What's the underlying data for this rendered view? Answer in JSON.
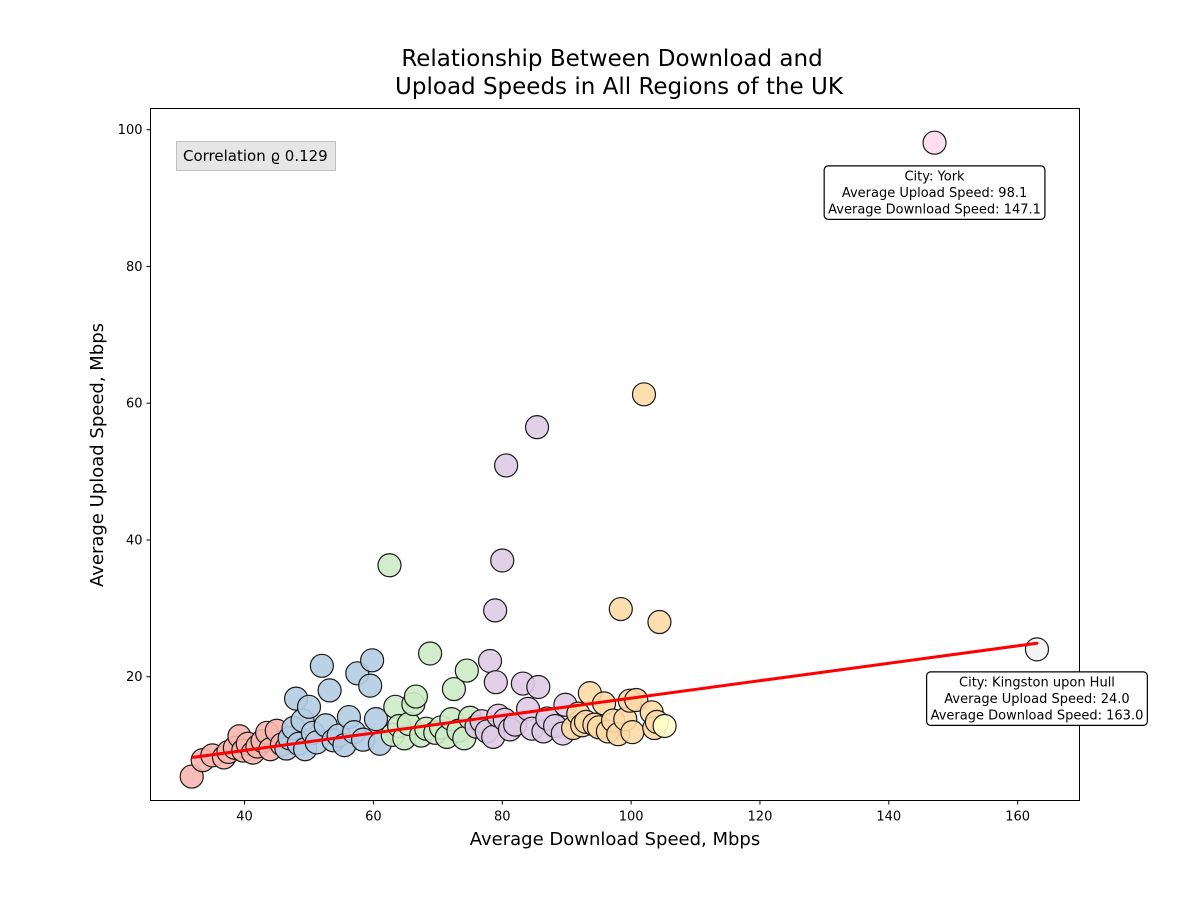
{
  "chart_data": {
    "type": "scatter",
    "title_lines": [
      "Relationship Between Download and",
      "Upload Speeds in All Regions of the UK"
    ],
    "xlabel": "Average Download Speed, Mbps",
    "ylabel": "Average Upload Speed, Mbps",
    "xlim": [
      25.4,
      169.6
    ],
    "ylim": [
      1.9,
      103.1
    ],
    "xticks": [
      40,
      60,
      80,
      100,
      120,
      140,
      160
    ],
    "yticks": [
      20,
      40,
      60,
      80,
      100
    ],
    "grid": false,
    "correlation_text": "Correlation ϱ 0.129",
    "trend_line": {
      "color": "#ff0000",
      "points": [
        [
          32.0,
          8.2
        ],
        [
          163.0,
          24.9
        ]
      ]
    },
    "colors": {
      "red": "#f7b6ae",
      "blue": "#b4cde3",
      "green": "#ccebc5",
      "purple": "#decbe4",
      "orange": "#fed9a6",
      "yellow": "#ffffcc",
      "pink": "#fddaec",
      "white": "#f2f2f2"
    },
    "points": [
      {
        "x": 31.8,
        "y": 5.4,
        "c": "red"
      },
      {
        "x": 33.5,
        "y": 7.8,
        "c": "red"
      },
      {
        "x": 35.0,
        "y": 8.5,
        "c": "red"
      },
      {
        "x": 36.8,
        "y": 8.2,
        "c": "red"
      },
      {
        "x": 37.5,
        "y": 9.0,
        "c": "red"
      },
      {
        "x": 38.5,
        "y": 9.6,
        "c": "red"
      },
      {
        "x": 39.2,
        "y": 11.3,
        "c": "red"
      },
      {
        "x": 39.8,
        "y": 9.2,
        "c": "red"
      },
      {
        "x": 40.5,
        "y": 10.2,
        "c": "red"
      },
      {
        "x": 41.3,
        "y": 8.9,
        "c": "red"
      },
      {
        "x": 42.0,
        "y": 9.8,
        "c": "red"
      },
      {
        "x": 42.8,
        "y": 10.6,
        "c": "red"
      },
      {
        "x": 43.5,
        "y": 11.8,
        "c": "red"
      },
      {
        "x": 44.0,
        "y": 9.4,
        "c": "red"
      },
      {
        "x": 45.0,
        "y": 12.1,
        "c": "red"
      },
      {
        "x": 45.8,
        "y": 10.1,
        "c": "red"
      },
      {
        "x": 46.5,
        "y": 9.5,
        "c": "blue"
      },
      {
        "x": 47.0,
        "y": 11.0,
        "c": "blue"
      },
      {
        "x": 47.6,
        "y": 12.5,
        "c": "blue"
      },
      {
        "x": 48.0,
        "y": 16.8,
        "c": "blue"
      },
      {
        "x": 48.4,
        "y": 10.2,
        "c": "blue"
      },
      {
        "x": 49.0,
        "y": 13.6,
        "c": "blue"
      },
      {
        "x": 49.4,
        "y": 9.4,
        "c": "blue"
      },
      {
        "x": 50.0,
        "y": 15.6,
        "c": "blue"
      },
      {
        "x": 50.6,
        "y": 11.8,
        "c": "blue"
      },
      {
        "x": 51.2,
        "y": 10.4,
        "c": "blue"
      },
      {
        "x": 52.0,
        "y": 21.6,
        "c": "blue"
      },
      {
        "x": 52.6,
        "y": 12.9,
        "c": "blue"
      },
      {
        "x": 53.2,
        "y": 18.0,
        "c": "blue"
      },
      {
        "x": 53.8,
        "y": 10.7,
        "c": "blue"
      },
      {
        "x": 54.6,
        "y": 11.4,
        "c": "blue"
      },
      {
        "x": 55.5,
        "y": 10.0,
        "c": "blue"
      },
      {
        "x": 56.2,
        "y": 14.1,
        "c": "blue"
      },
      {
        "x": 57.0,
        "y": 11.9,
        "c": "blue"
      },
      {
        "x": 57.5,
        "y": 20.5,
        "c": "blue"
      },
      {
        "x": 58.4,
        "y": 10.8,
        "c": "blue"
      },
      {
        "x": 59.5,
        "y": 18.7,
        "c": "blue"
      },
      {
        "x": 59.8,
        "y": 22.4,
        "c": "blue"
      },
      {
        "x": 60.4,
        "y": 13.8,
        "c": "blue"
      },
      {
        "x": 61.0,
        "y": 10.2,
        "c": "blue"
      },
      {
        "x": 62.5,
        "y": 36.3,
        "c": "green"
      },
      {
        "x": 63.0,
        "y": 11.5,
        "c": "green"
      },
      {
        "x": 63.4,
        "y": 15.6,
        "c": "green"
      },
      {
        "x": 64.0,
        "y": 12.8,
        "c": "green"
      },
      {
        "x": 64.8,
        "y": 11.0,
        "c": "green"
      },
      {
        "x": 65.5,
        "y": 13.1,
        "c": "green"
      },
      {
        "x": 66.2,
        "y": 16.0,
        "c": "green"
      },
      {
        "x": 66.6,
        "y": 17.1,
        "c": "green"
      },
      {
        "x": 67.4,
        "y": 11.4,
        "c": "green"
      },
      {
        "x": 68.2,
        "y": 12.4,
        "c": "green"
      },
      {
        "x": 68.8,
        "y": 23.4,
        "c": "green"
      },
      {
        "x": 69.6,
        "y": 11.8,
        "c": "green"
      },
      {
        "x": 70.5,
        "y": 12.6,
        "c": "green"
      },
      {
        "x": 71.4,
        "y": 11.2,
        "c": "green"
      },
      {
        "x": 72.1,
        "y": 13.8,
        "c": "green"
      },
      {
        "x": 72.5,
        "y": 18.2,
        "c": "green"
      },
      {
        "x": 73.2,
        "y": 12.1,
        "c": "green"
      },
      {
        "x": 74.1,
        "y": 11.0,
        "c": "green"
      },
      {
        "x": 74.5,
        "y": 20.9,
        "c": "green"
      },
      {
        "x": 75.0,
        "y": 14.0,
        "c": "green"
      },
      {
        "x": 76.0,
        "y": 12.7,
        "c": "purple"
      },
      {
        "x": 76.8,
        "y": 13.5,
        "c": "purple"
      },
      {
        "x": 77.6,
        "y": 12.0,
        "c": "purple"
      },
      {
        "x": 78.1,
        "y": 22.3,
        "c": "purple"
      },
      {
        "x": 78.6,
        "y": 11.2,
        "c": "purple"
      },
      {
        "x": 78.9,
        "y": 29.7,
        "c": "purple"
      },
      {
        "x": 79.0,
        "y": 19.2,
        "c": "purple"
      },
      {
        "x": 79.4,
        "y": 14.3,
        "c": "purple"
      },
      {
        "x": 80.0,
        "y": 37.0,
        "c": "purple"
      },
      {
        "x": 80.4,
        "y": 13.7,
        "c": "purple"
      },
      {
        "x": 80.6,
        "y": 50.9,
        "c": "purple"
      },
      {
        "x": 81.2,
        "y": 12.3,
        "c": "purple"
      },
      {
        "x": 82.0,
        "y": 13.0,
        "c": "purple"
      },
      {
        "x": 83.2,
        "y": 19.0,
        "c": "purple"
      },
      {
        "x": 84.0,
        "y": 15.3,
        "c": "purple"
      },
      {
        "x": 84.6,
        "y": 12.4,
        "c": "purple"
      },
      {
        "x": 85.4,
        "y": 56.5,
        "c": "purple"
      },
      {
        "x": 85.6,
        "y": 18.5,
        "c": "purple"
      },
      {
        "x": 86.4,
        "y": 12.0,
        "c": "purple"
      },
      {
        "x": 87.0,
        "y": 13.9,
        "c": "purple"
      },
      {
        "x": 88.2,
        "y": 12.8,
        "c": "purple"
      },
      {
        "x": 89.4,
        "y": 11.7,
        "c": "purple"
      },
      {
        "x": 89.8,
        "y": 15.9,
        "c": "purple"
      },
      {
        "x": 91.0,
        "y": 12.5,
        "c": "orange"
      },
      {
        "x": 91.8,
        "y": 14.6,
        "c": "orange"
      },
      {
        "x": 92.4,
        "y": 12.9,
        "c": "orange"
      },
      {
        "x": 93.0,
        "y": 13.4,
        "c": "orange"
      },
      {
        "x": 93.6,
        "y": 17.6,
        "c": "orange"
      },
      {
        "x": 94.3,
        "y": 13.0,
        "c": "orange"
      },
      {
        "x": 95.0,
        "y": 12.6,
        "c": "orange"
      },
      {
        "x": 95.8,
        "y": 16.1,
        "c": "orange"
      },
      {
        "x": 96.4,
        "y": 12.0,
        "c": "orange"
      },
      {
        "x": 97.2,
        "y": 13.6,
        "c": "orange"
      },
      {
        "x": 98.0,
        "y": 11.6,
        "c": "orange"
      },
      {
        "x": 98.4,
        "y": 29.9,
        "c": "orange"
      },
      {
        "x": 99.1,
        "y": 13.8,
        "c": "orange"
      },
      {
        "x": 99.8,
        "y": 16.5,
        "c": "orange"
      },
      {
        "x": 100.2,
        "y": 11.9,
        "c": "orange"
      },
      {
        "x": 100.8,
        "y": 16.6,
        "c": "orange"
      },
      {
        "x": 102.0,
        "y": 61.3,
        "c": "orange"
      },
      {
        "x": 103.2,
        "y": 14.8,
        "c": "orange"
      },
      {
        "x": 103.6,
        "y": 12.5,
        "c": "orange"
      },
      {
        "x": 104.0,
        "y": 13.4,
        "c": "orange"
      },
      {
        "x": 104.4,
        "y": 28.0,
        "c": "orange"
      },
      {
        "x": 105.2,
        "y": 12.8,
        "c": "yellow"
      },
      {
        "x": 147.1,
        "y": 98.1,
        "c": "pink"
      },
      {
        "x": 163.0,
        "y": 24.0,
        "c": "white"
      }
    ],
    "annotations": [
      {
        "lines": [
          "City: York",
          "Average Upload Speed: 98.1",
          "Average Download Speed: 147.1"
        ],
        "x": 147.1,
        "y": 90.8
      },
      {
        "lines": [
          "City: Kingston upon Hull",
          "Average Upload Speed: 24.0",
          "Average Download Speed: 163.0"
        ],
        "x": 163.0,
        "y": 16.8
      }
    ]
  }
}
